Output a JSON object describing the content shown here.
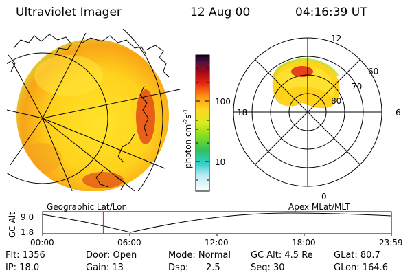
{
  "header": {
    "instrument": "Ultraviolet Imager",
    "date": "12 Aug 00",
    "time": "04:16:39 UT"
  },
  "geo_panel": {
    "caption": "Geographic Lat/Lon"
  },
  "apex_panel": {
    "caption": "Apex MLat/MLT",
    "mlt_labels": [
      "12",
      "18",
      "6",
      "0"
    ],
    "mlat_labels": [
      "60",
      "70",
      "80"
    ]
  },
  "colorbar": {
    "unit": "photon cm",
    "unit_sup1": "-2",
    "unit_s": "s",
    "unit_sup2": "-1",
    "tick_labels": [
      "100",
      "10"
    ]
  },
  "gc_alt_plot": {
    "ylabel": "GC Alt",
    "y_ticks": [
      "9.0",
      "1.8"
    ],
    "x_ticks": [
      "00:00",
      "06:00",
      "12:00",
      "18:00",
      "23:59"
    ],
    "current_time_fraction": 0.174
  },
  "info": {
    "flt": "Flt: 1356",
    "ip": "IP: 18.0",
    "door": "Door: Open",
    "gain": "Gain: 13",
    "mode": "Mode: Normal",
    "dsp_label": "Dsp:",
    "dsp_value": "2.5",
    "gcalt": "GC Alt: 4.5 Re",
    "seq": "Seq: 30",
    "glat": "GLat: 80.7",
    "glon": "GLon: 164.6"
  }
}
